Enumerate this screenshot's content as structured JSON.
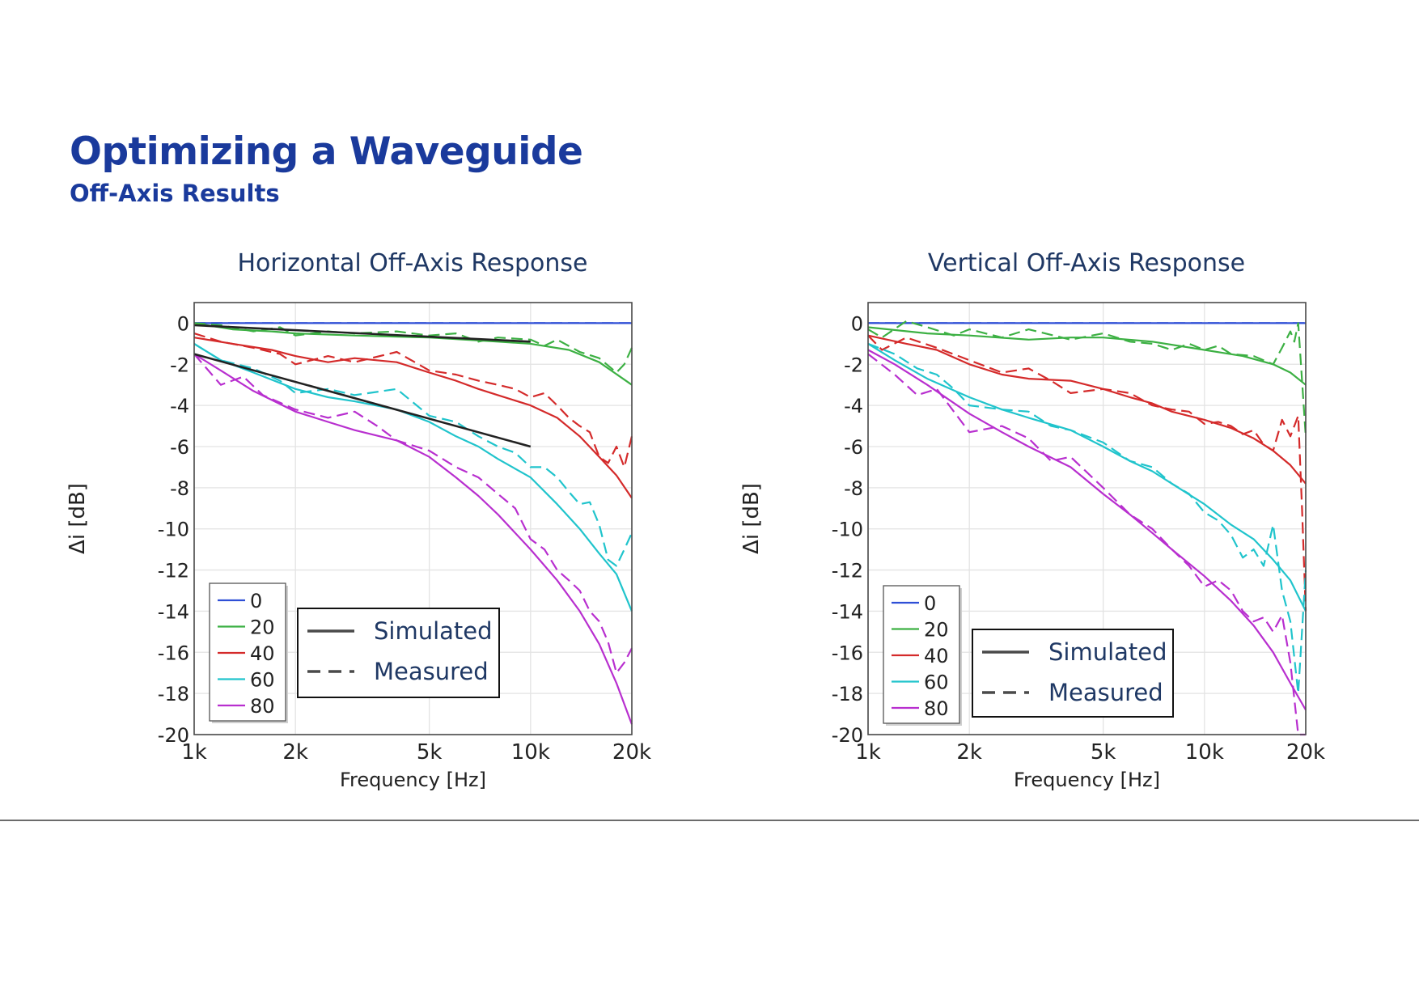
{
  "slide": {
    "title": "Optimizing a Waveguide",
    "subtitle": "Off-Axis Results"
  },
  "chart_data": [
    {
      "type": "line",
      "title": "Horizontal Off-Axis Response",
      "xlabel": "Frequency [Hz]",
      "ylabel": "Δi [dB]",
      "x_scale": "log",
      "xlim": [
        1000,
        20000
      ],
      "ylim": [
        -20,
        1
      ],
      "x_ticks": [
        1000,
        2000,
        5000,
        10000,
        20000
      ],
      "x_tick_labels": [
        "1k",
        "2k",
        "5k",
        "10k",
        "20k"
      ],
      "y_ticks": [
        0,
        -2,
        -4,
        -6,
        -8,
        -10,
        -12,
        -14,
        -16,
        -18,
        -20
      ],
      "y_tick_labels": [
        "0",
        "-2",
        "-4",
        "-6",
        "-8",
        "-10",
        "-12",
        "-14",
        "-16",
        "-18",
        "-20"
      ],
      "grid": true,
      "legend_angles": {
        "position": "bottom-left",
        "entries": [
          "0",
          "20",
          "40",
          "60",
          "80"
        ]
      },
      "legend_styles": {
        "position": "bottom-center",
        "entries": [
          "Simulated",
          "Measured"
        ]
      },
      "series_colors": {
        "0": "#2f4fd6",
        "20": "#3cb043",
        "40": "#d42a2a",
        "60": "#20c4cc",
        "80": "#b82fcf"
      },
      "series": [
        {
          "angle": "0",
          "style": "simulated",
          "x": [
            1000,
            20000
          ],
          "y": [
            0,
            0
          ]
        },
        {
          "angle": "0",
          "style": "measured",
          "x": [
            1000,
            20000
          ],
          "y": [
            0,
            0
          ]
        },
        {
          "angle": "20",
          "style": "simulated",
          "x": [
            1000,
            1300,
            1700,
            2000,
            3000,
            5000,
            8000,
            10000,
            13000,
            16000,
            20000
          ],
          "y": [
            0,
            -0.3,
            -0.4,
            -0.5,
            -0.6,
            -0.7,
            -0.9,
            -1.0,
            -1.3,
            -1.9,
            -3.0
          ]
        },
        {
          "angle": "20",
          "style": "measured",
          "x": [
            1000,
            1200,
            1500,
            1800,
            2000,
            2500,
            3000,
            4000,
            5000,
            6000,
            7000,
            8000,
            10000,
            11000,
            12000,
            14000,
            16000,
            18000,
            19000,
            20000
          ],
          "y": [
            0,
            -0.1,
            -0.4,
            -0.2,
            -0.6,
            -0.4,
            -0.5,
            -0.4,
            -0.6,
            -0.5,
            -0.9,
            -0.7,
            -0.8,
            -1.1,
            -0.8,
            -1.4,
            -1.7,
            -2.4,
            -2.0,
            -1.2
          ]
        },
        {
          "angle": "40",
          "style": "simulated",
          "x": [
            1000,
            1300,
            1700,
            2000,
            2500,
            3000,
            4000,
            5000,
            6000,
            7000,
            8000,
            10000,
            12000,
            14000,
            16000,
            18000,
            20000
          ],
          "y": [
            -0.7,
            -1.0,
            -1.3,
            -1.6,
            -1.9,
            -1.7,
            -1.9,
            -2.4,
            -2.8,
            -3.2,
            -3.5,
            -4.0,
            -4.6,
            -5.5,
            -6.5,
            -7.4,
            -8.5
          ]
        },
        {
          "angle": "40",
          "style": "measured",
          "x": [
            1000,
            1200,
            1500,
            1800,
            2000,
            2500,
            3000,
            4000,
            5000,
            6000,
            7000,
            8000,
            9000,
            10000,
            11000,
            12000,
            13000,
            14000,
            15000,
            16000,
            17000,
            18000,
            19000,
            20000
          ],
          "y": [
            -0.5,
            -0.9,
            -1.2,
            -1.5,
            -2.0,
            -1.6,
            -1.9,
            -1.4,
            -2.3,
            -2.5,
            -2.8,
            -3.0,
            -3.2,
            -3.6,
            -3.4,
            -4.0,
            -4.6,
            -5.0,
            -5.3,
            -6.5,
            -6.8,
            -6.0,
            -7.0,
            -5.5
          ]
        },
        {
          "angle": "60",
          "style": "simulated",
          "x": [
            1000,
            1200,
            1500,
            2000,
            2500,
            3000,
            4000,
            5000,
            6000,
            7000,
            8000,
            10000,
            12000,
            14000,
            16000,
            18000,
            20000
          ],
          "y": [
            -1.0,
            -1.8,
            -2.4,
            -3.2,
            -3.6,
            -3.8,
            -4.2,
            -4.8,
            -5.5,
            -6.0,
            -6.6,
            -7.5,
            -8.8,
            -10.0,
            -11.2,
            -12.2,
            -14.0
          ]
        },
        {
          "angle": "60",
          "style": "measured",
          "x": [
            1000,
            1200,
            1500,
            1800,
            2000,
            2500,
            3000,
            4000,
            5000,
            6000,
            7000,
            8000,
            9000,
            10000,
            11000,
            12000,
            13000,
            14000,
            15000,
            16000,
            17000,
            18000,
            19000,
            20000
          ],
          "y": [
            -1.0,
            -1.8,
            -2.2,
            -2.8,
            -3.4,
            -3.2,
            -3.5,
            -3.2,
            -4.5,
            -4.8,
            -5.5,
            -6.0,
            -6.3,
            -7.0,
            -7.0,
            -7.5,
            -8.2,
            -8.8,
            -8.7,
            -9.8,
            -11.5,
            -11.8,
            -11.0,
            -10.2
          ]
        },
        {
          "angle": "80",
          "style": "simulated",
          "x": [
            1000,
            1200,
            1500,
            2000,
            2500,
            3000,
            4000,
            5000,
            6000,
            7000,
            8000,
            10000,
            12000,
            14000,
            16000,
            18000,
            20000
          ],
          "y": [
            -1.5,
            -2.3,
            -3.3,
            -4.3,
            -4.8,
            -5.2,
            -5.7,
            -6.5,
            -7.5,
            -8.4,
            -9.3,
            -11.0,
            -12.5,
            -14.0,
            -15.6,
            -17.5,
            -19.5
          ]
        },
        {
          "angle": "80",
          "style": "measured",
          "x": [
            1000,
            1200,
            1400,
            1600,
            2000,
            2500,
            3000,
            3500,
            4000,
            5000,
            6000,
            7000,
            8000,
            9000,
            10000,
            11000,
            12000,
            13000,
            14000,
            15000,
            16000,
            17000,
            18000,
            19000,
            20000
          ],
          "y": [
            -1.5,
            -3.0,
            -2.6,
            -3.5,
            -4.2,
            -4.6,
            -4.3,
            -5.0,
            -5.7,
            -6.2,
            -7.0,
            -7.5,
            -8.3,
            -9.0,
            -10.5,
            -11.0,
            -12.0,
            -12.5,
            -13.0,
            -14.0,
            -14.5,
            -15.5,
            -17.0,
            -16.5,
            -15.8
          ]
        },
        {
          "angle": "0",
          "style": "fit",
          "color": "#222222",
          "x": [
            1000,
            10000
          ],
          "y": [
            -0.1,
            -0.9
          ]
        },
        {
          "angle": "0",
          "style": "fit",
          "color": "#222222",
          "x": [
            1000,
            10000
          ],
          "y": [
            -1.5,
            -6.0
          ]
        }
      ]
    },
    {
      "type": "line",
      "title": "Vertical Off-Axis Response",
      "xlabel": "Frequency [Hz]",
      "ylabel": "Δi [dB]",
      "x_scale": "log",
      "xlim": [
        1000,
        20000
      ],
      "ylim": [
        -20,
        1
      ],
      "x_ticks": [
        1000,
        2000,
        5000,
        10000,
        20000
      ],
      "x_tick_labels": [
        "1k",
        "2k",
        "5k",
        "10k",
        "20k"
      ],
      "y_ticks": [
        0,
        -2,
        -4,
        -6,
        -8,
        -10,
        -12,
        -14,
        -16,
        -18,
        -20
      ],
      "y_tick_labels": [
        "0",
        "-2",
        "-4",
        "-6",
        "-8",
        "-10",
        "-12",
        "-14",
        "-16",
        "-18",
        "-20"
      ],
      "grid": true,
      "legend_angles": {
        "position": "bottom-left",
        "entries": [
          "0",
          "20",
          "40",
          "60",
          "80"
        ]
      },
      "legend_styles": {
        "position": "bottom-center",
        "entries": [
          "Simulated",
          "Measured"
        ]
      },
      "series_colors": {
        "0": "#2f4fd6",
        "20": "#3cb043",
        "40": "#d42a2a",
        "60": "#20c4cc",
        "80": "#b82fcf"
      },
      "series": [
        {
          "angle": "0",
          "style": "simulated",
          "x": [
            1000,
            20000
          ],
          "y": [
            0,
            0
          ]
        },
        {
          "angle": "0",
          "style": "measured",
          "x": [
            1000,
            20000
          ],
          "y": [
            0,
            0
          ]
        },
        {
          "angle": "20",
          "style": "simulated",
          "x": [
            1000,
            1500,
            2000,
            3000,
            4000,
            5000,
            7000,
            10000,
            13000,
            16000,
            18000,
            20000
          ],
          "y": [
            -0.2,
            -0.5,
            -0.6,
            -0.8,
            -0.7,
            -0.7,
            -0.9,
            -1.3,
            -1.6,
            -2.0,
            -2.4,
            -3.0
          ]
        },
        {
          "angle": "20",
          "style": "measured",
          "x": [
            1000,
            1100,
            1300,
            1500,
            1800,
            2000,
            2500,
            3000,
            4000,
            5000,
            6000,
            7000,
            8000,
            9000,
            10000,
            11000,
            12000,
            14000,
            16000,
            17000,
            18000,
            18500,
            19000,
            20000
          ],
          "y": [
            -0.3,
            -0.7,
            0.1,
            -0.2,
            -0.6,
            -0.3,
            -0.7,
            -0.3,
            -0.8,
            -0.5,
            -0.9,
            -1.0,
            -1.3,
            -1.0,
            -1.3,
            -1.1,
            -1.5,
            -1.6,
            -2.0,
            -1.2,
            -0.4,
            -0.9,
            0.0,
            -5.5
          ]
        },
        {
          "angle": "40",
          "style": "simulated",
          "x": [
            1000,
            1300,
            1600,
            2000,
            2500,
            3000,
            4000,
            5000,
            6000,
            7000,
            8000,
            10000,
            12000,
            14000,
            16000,
            18000,
            20000
          ],
          "y": [
            -0.6,
            -1.0,
            -1.3,
            -2.0,
            -2.5,
            -2.7,
            -2.8,
            -3.2,
            -3.6,
            -3.9,
            -4.3,
            -4.7,
            -5.1,
            -5.6,
            -6.2,
            -6.9,
            -7.8
          ]
        },
        {
          "angle": "40",
          "style": "measured",
          "x": [
            1000,
            1100,
            1300,
            1600,
            2000,
            2500,
            3000,
            3500,
            4000,
            5000,
            6000,
            7000,
            8000,
            9000,
            10000,
            11000,
            12000,
            13000,
            14000,
            15000,
            16000,
            17000,
            18000,
            19000,
            19500,
            20000
          ],
          "y": [
            -0.6,
            -1.3,
            -0.7,
            -1.2,
            -1.8,
            -2.4,
            -2.2,
            -2.8,
            -3.4,
            -3.2,
            -3.4,
            -4.0,
            -4.2,
            -4.3,
            -4.9,
            -4.8,
            -5.0,
            -5.4,
            -5.2,
            -5.9,
            -6.2,
            -4.7,
            -5.5,
            -4.5,
            -9.0,
            -14.0
          ]
        },
        {
          "angle": "60",
          "style": "simulated",
          "x": [
            1000,
            1200,
            1500,
            2000,
            2500,
            3000,
            4000,
            5000,
            6000,
            7000,
            8000,
            10000,
            12000,
            14000,
            16000,
            18000,
            20000
          ],
          "y": [
            -1.0,
            -1.8,
            -2.7,
            -3.6,
            -4.2,
            -4.6,
            -5.2,
            -6.0,
            -6.7,
            -7.2,
            -7.8,
            -8.8,
            -9.8,
            -10.5,
            -11.5,
            -12.5,
            -14.0
          ]
        },
        {
          "angle": "60",
          "style": "measured",
          "x": [
            1000,
            1200,
            1400,
            1600,
            1800,
            2000,
            2500,
            3000,
            3500,
            4000,
            5000,
            6000,
            7000,
            8000,
            9000,
            10000,
            11000,
            12000,
            13000,
            14000,
            15000,
            16000,
            17000,
            18000,
            19000,
            20000
          ],
          "y": [
            -1.0,
            -1.5,
            -2.2,
            -2.5,
            -3.2,
            -4.0,
            -4.2,
            -4.3,
            -5.0,
            -5.2,
            -5.8,
            -6.7,
            -7.0,
            -7.8,
            -8.3,
            -9.2,
            -9.6,
            -10.3,
            -11.4,
            -11.0,
            -11.8,
            -9.8,
            -13.0,
            -14.5,
            -18.0,
            -12.0
          ]
        },
        {
          "angle": "80",
          "style": "simulated",
          "x": [
            1000,
            1200,
            1500,
            2000,
            2500,
            3000,
            4000,
            5000,
            6000,
            7000,
            8000,
            10000,
            12000,
            14000,
            16000,
            18000,
            20000
          ],
          "y": [
            -1.3,
            -2.0,
            -3.0,
            -4.4,
            -5.3,
            -6.0,
            -7.0,
            -8.3,
            -9.3,
            -10.2,
            -11.0,
            -12.3,
            -13.5,
            -14.7,
            -16.0,
            -17.5,
            -18.8
          ]
        },
        {
          "angle": "80",
          "style": "measured",
          "x": [
            1000,
            1200,
            1400,
            1600,
            1800,
            2000,
            2500,
            3000,
            3500,
            4000,
            5000,
            6000,
            7000,
            8000,
            9000,
            10000,
            11000,
            12000,
            13000,
            14000,
            15000,
            16000,
            17000,
            18000,
            19000,
            20000
          ],
          "y": [
            -1.5,
            -2.5,
            -3.5,
            -3.2,
            -4.3,
            -5.3,
            -5.0,
            -5.6,
            -6.7,
            -6.5,
            -8.0,
            -9.3,
            -10.0,
            -11.0,
            -11.8,
            -12.8,
            -12.5,
            -13.0,
            -14.0,
            -14.5,
            -14.3,
            -15.0,
            -14.2,
            -16.5,
            -20.0,
            -20.0
          ]
        }
      ]
    }
  ]
}
